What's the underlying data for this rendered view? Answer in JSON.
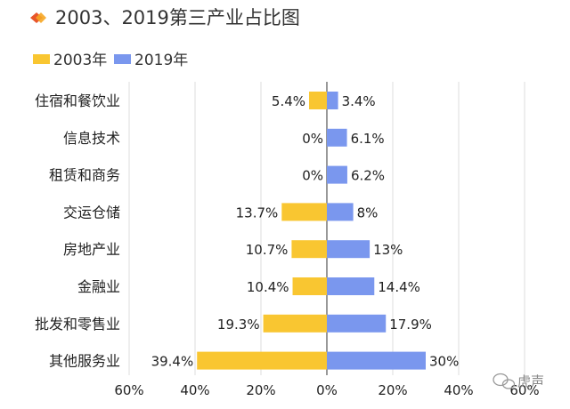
{
  "chart_data": {
    "type": "bar",
    "orientation": "horizontal-diverging",
    "title": "2003、2019第三产业占比图",
    "categories": [
      "住宿和餐饮业",
      "信息技术",
      "租赁和商务",
      "交运仓储",
      "房地产业",
      "金融业",
      "批发和零售业",
      "其他服务业"
    ],
    "series": [
      {
        "name": "2003年",
        "color": "#F9C631",
        "values": [
          5.4,
          0,
          0,
          13.7,
          10.7,
          10.4,
          19.3,
          39.4
        ],
        "labels": [
          "5.4%",
          "0%",
          "0%",
          "13.7%",
          "10.7%",
          "10.4%",
          "19.3%",
          "39.4%"
        ]
      },
      {
        "name": "2019年",
        "color": "#7A97EE",
        "values": [
          3.4,
          6.1,
          6.2,
          8,
          13,
          14.4,
          17.9,
          30
        ],
        "labels": [
          "3.4%",
          "6.1%",
          "6.2%",
          "8%",
          "13%",
          "14.4%",
          "17.9%",
          "30%"
        ]
      }
    ],
    "xlim": [
      -60,
      60
    ],
    "xticks": [
      -60,
      -40,
      -20,
      0,
      20,
      40,
      60
    ],
    "xtick_labels": [
      "60%",
      "40%",
      "20%",
      "0%",
      "20%",
      "40%",
      "60%"
    ],
    "grid": true,
    "legend_position": "top-left"
  },
  "watermark": {
    "text": "虎声"
  }
}
